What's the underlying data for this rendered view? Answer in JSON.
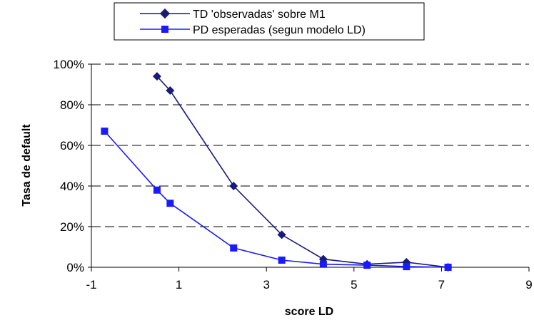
{
  "chart_data": {
    "type": "line",
    "title": "",
    "xlabel": "score LD",
    "ylabel": "Tasa de default",
    "xlim": [
      -1,
      9
    ],
    "ylim": [
      0,
      100
    ],
    "x_ticks": [
      -1,
      1,
      3,
      5,
      7,
      9
    ],
    "x_tick_labels": [
      "-1",
      "1",
      "3",
      "5",
      "7",
      "9"
    ],
    "y_ticks": [
      0,
      20,
      40,
      60,
      80,
      100
    ],
    "y_tick_labels": [
      "0%",
      "20%",
      "40%",
      "60%",
      "80%",
      "100%"
    ],
    "grid": "horizontal dashed",
    "legend_position": "top",
    "series": [
      {
        "name": "TD 'observadas' sobre M1",
        "color": "#1a1a7a",
        "marker": "diamond",
        "x": [
          0.5,
          0.8,
          2.25,
          3.35,
          4.3,
          5.3,
          6.2,
          7.15
        ],
        "y": [
          94,
          87,
          40,
          16,
          4,
          1.5,
          2.5,
          0
        ]
      },
      {
        "name": "PD esperadas (segun modelo LD)",
        "color": "#1a1aff",
        "marker": "square",
        "x": [
          -0.7,
          0.5,
          0.8,
          2.25,
          3.35,
          4.3,
          5.3,
          6.2,
          7.15
        ],
        "y": [
          67,
          38,
          31.5,
          9.5,
          3.5,
          1.5,
          1,
          0.3,
          0
        ]
      }
    ]
  }
}
